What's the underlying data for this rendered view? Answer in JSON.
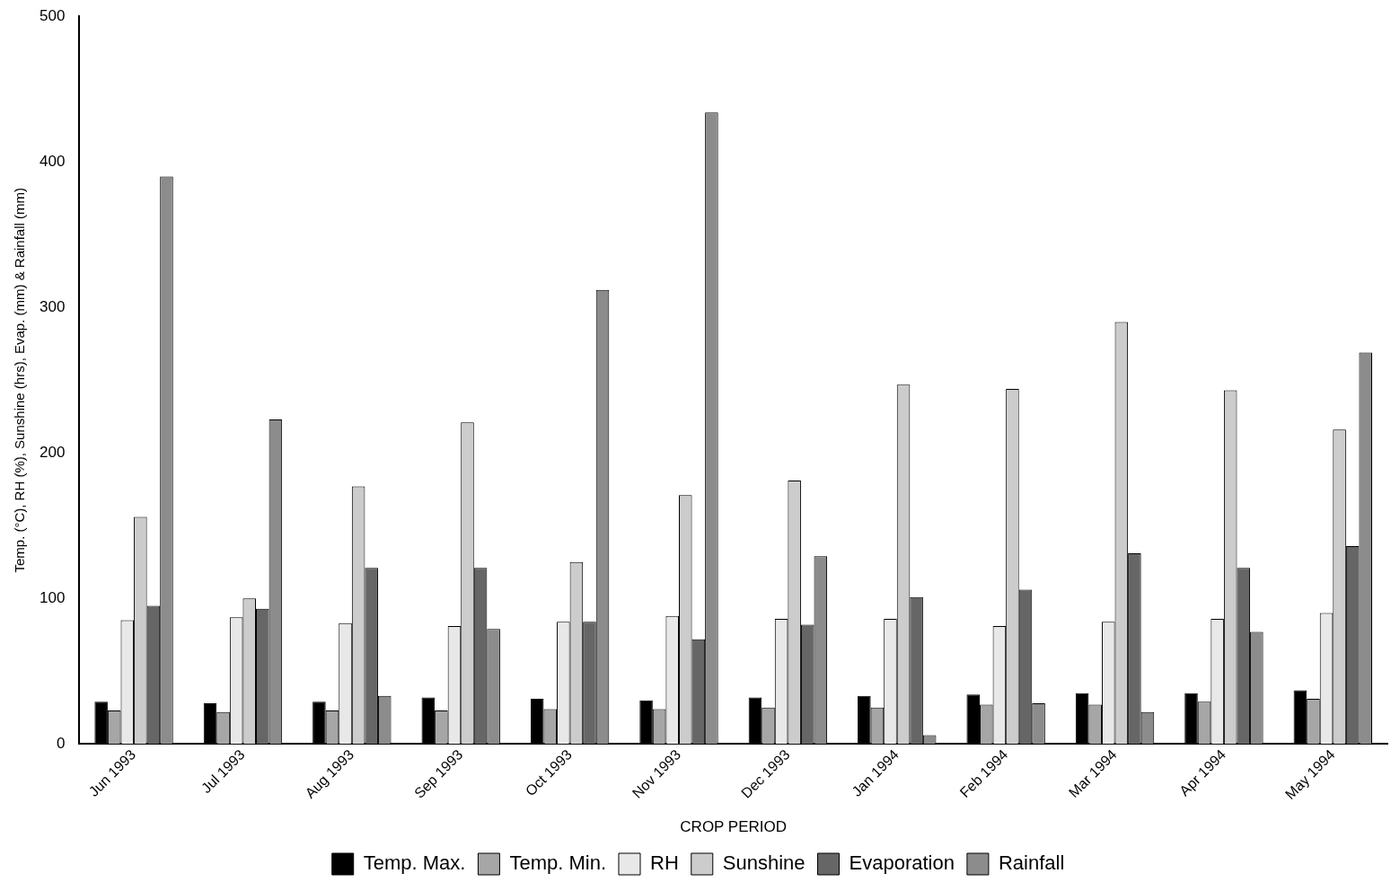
{
  "chart_data": {
    "type": "bar",
    "xlabel": "CROP PERIOD",
    "ylabel": "Temp. (°C), RH (%), Sunshine (hrs), Evap. (mm) & Rainfall (mm)",
    "categories": [
      "Jun 1993",
      "Jul 1993",
      "Aug 1993",
      "Sep 1993",
      "Oct 1993",
      "Nov 1993",
      "Dec 1993",
      "Jan 1994",
      "Feb 1994",
      "Mar 1994",
      "Apr 1994",
      "May 1994"
    ],
    "series": [
      {
        "name": "Temp. Max.",
        "color": "#000000",
        "values": [
          29,
          28,
          29,
          32,
          31,
          30,
          32,
          33,
          34,
          35,
          35,
          37
        ]
      },
      {
        "name": "Temp. Min.",
        "color": "#a6a6a6",
        "values": [
          23,
          22,
          23,
          23,
          24,
          24,
          25,
          25,
          27,
          27,
          29,
          31
        ]
      },
      {
        "name": "RH",
        "color": "#e8e8e8",
        "values": [
          85,
          87,
          83,
          81,
          84,
          88,
          86,
          86,
          81,
          84,
          86,
          90
        ]
      },
      {
        "name": "Sunshine",
        "color": "#cccccc",
        "values": [
          156,
          100,
          177,
          221,
          125,
          171,
          181,
          247,
          244,
          290,
          243,
          216
        ]
      },
      {
        "name": "Evaporation",
        "color": "#666666",
        "values": [
          95,
          93,
          121,
          121,
          84,
          72,
          82,
          101,
          106,
          131,
          121,
          136
        ]
      },
      {
        "name": "Rainfall",
        "color": "#8c8c8c",
        "values": [
          390,
          223,
          33,
          79,
          312,
          434,
          129,
          6,
          28,
          22,
          77,
          269
        ]
      }
    ],
    "ylim": [
      0,
      500
    ],
    "yticks": [
      0,
      100,
      200,
      300,
      400,
      500
    ],
    "grid": false,
    "legend": "bottom"
  }
}
